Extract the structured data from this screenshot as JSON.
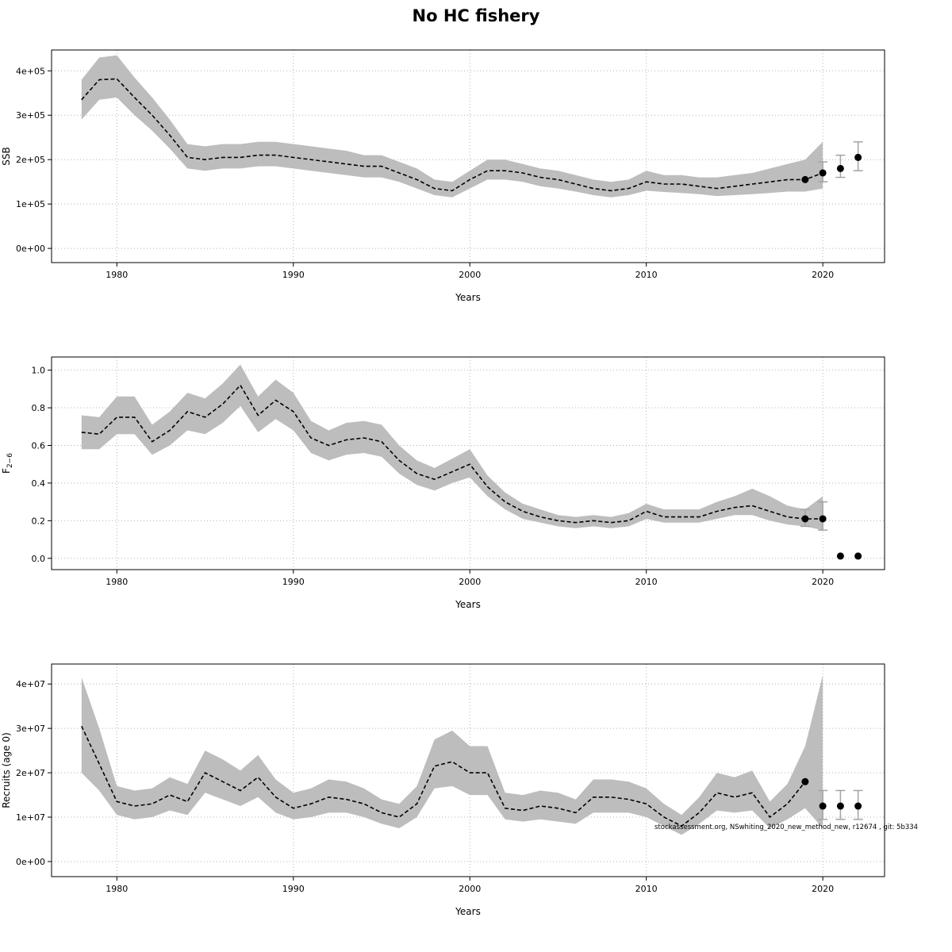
{
  "title": "No HC fishery",
  "watermark": "stockassessment.org, NSwhiting_2020_new_method_new, r12674 , git: 5b334",
  "colors": {
    "band": "#bdbdbd",
    "line": "#000000",
    "point": "#000000",
    "errorbar": "#a3a3a3",
    "grid": "#b4b4b4",
    "border": "#000000",
    "text": "#000000"
  },
  "chart_data": [
    {
      "type": "line",
      "name": "ssb",
      "ylabel_parts": [
        {
          "text": "SSB"
        }
      ],
      "xlabel": "Years",
      "xlim": [
        1976.3,
        2023.5
      ],
      "ylim": [
        -32000,
        447000
      ],
      "xticks": [
        {
          "v": 1980,
          "label": "1980"
        },
        {
          "v": 1990,
          "label": "1990"
        },
        {
          "v": 2000,
          "label": "2000"
        },
        {
          "v": 2010,
          "label": "2010"
        },
        {
          "v": 2020,
          "label": "2020"
        }
      ],
      "yticks": [
        {
          "v": 0,
          "label": "0e+00"
        },
        {
          "v": 100000,
          "label": "1e+05"
        },
        {
          "v": 200000,
          "label": "2e+05"
        },
        {
          "v": 300000,
          "label": "3e+05"
        },
        {
          "v": 400000,
          "label": "4e+05"
        }
      ],
      "band": {
        "years": [
          1978,
          1979,
          1980,
          1981,
          1982,
          1983,
          1984,
          1985,
          1986,
          1987,
          1988,
          1989,
          1990,
          1991,
          1992,
          1993,
          1994,
          1995,
          1996,
          1997,
          1998,
          1999,
          2000,
          2001,
          2002,
          2003,
          2004,
          2005,
          2006,
          2007,
          2008,
          2009,
          2010,
          2011,
          2012,
          2013,
          2014,
          2015,
          2016,
          2017,
          2018,
          2019,
          2020
        ],
        "lo": [
          290000,
          335000,
          340000,
          300000,
          265000,
          225000,
          180000,
          175000,
          180000,
          180000,
          185000,
          185000,
          180000,
          175000,
          170000,
          165000,
          160000,
          160000,
          150000,
          135000,
          120000,
          115000,
          135000,
          155000,
          155000,
          150000,
          140000,
          135000,
          128000,
          120000,
          115000,
          120000,
          130000,
          127000,
          125000,
          122000,
          118000,
          120000,
          122000,
          125000,
          128000,
          128000,
          135000
        ],
        "hi": [
          380000,
          430000,
          435000,
          385000,
          340000,
          290000,
          235000,
          230000,
          235000,
          235000,
          240000,
          240000,
          235000,
          230000,
          225000,
          220000,
          210000,
          210000,
          195000,
          180000,
          155000,
          150000,
          175000,
          200000,
          200000,
          190000,
          180000,
          175000,
          165000,
          155000,
          150000,
          155000,
          175000,
          165000,
          165000,
          160000,
          160000,
          165000,
          170000,
          180000,
          190000,
          200000,
          240000
        ]
      },
      "line": {
        "years": [
          1978,
          1979,
          1980,
          1981,
          1982,
          1983,
          1984,
          1985,
          1986,
          1987,
          1988,
          1989,
          1990,
          1991,
          1992,
          1993,
          1994,
          1995,
          1996,
          1997,
          1998,
          1999,
          2000,
          2001,
          2002,
          2003,
          2004,
          2005,
          2006,
          2007,
          2008,
          2009,
          2010,
          2011,
          2012,
          2013,
          2014,
          2015,
          2016,
          2017,
          2018,
          2019,
          2020
        ],
        "values": [
          335000,
          380000,
          382000,
          340000,
          300000,
          255000,
          205000,
          200000,
          205000,
          205000,
          210000,
          210000,
          205000,
          200000,
          195000,
          190000,
          185000,
          185000,
          170000,
          155000,
          135000,
          130000,
          155000,
          175000,
          175000,
          170000,
          160000,
          155000,
          145000,
          135000,
          130000,
          135000,
          150000,
          145000,
          145000,
          140000,
          135000,
          140000,
          145000,
          150000,
          155000,
          155000,
          170000
        ]
      },
      "points": [
        {
          "year": 2019,
          "value": 155000
        },
        {
          "year": 2020,
          "value": 170000,
          "lo": 150000,
          "hi": 195000
        },
        {
          "year": 2021,
          "value": 180000,
          "lo": 160000,
          "hi": 210000
        },
        {
          "year": 2022,
          "value": 205000,
          "lo": 175000,
          "hi": 240000
        }
      ]
    },
    {
      "type": "line",
      "name": "f2-6",
      "ylabel_parts": [
        {
          "text": "F"
        },
        {
          "text": "2−6",
          "sub": true
        }
      ],
      "xlabel": "Years",
      "xlim": [
        1976.3,
        2023.5
      ],
      "ylim": [
        -0.06,
        1.07
      ],
      "xticks": [
        {
          "v": 1980,
          "label": "1980"
        },
        {
          "v": 1990,
          "label": "1990"
        },
        {
          "v": 2000,
          "label": "2000"
        },
        {
          "v": 2010,
          "label": "2010"
        },
        {
          "v": 2020,
          "label": "2020"
        }
      ],
      "yticks": [
        {
          "v": 0.0,
          "label": "0.0"
        },
        {
          "v": 0.2,
          "label": "0.2"
        },
        {
          "v": 0.4,
          "label": "0.4"
        },
        {
          "v": 0.6,
          "label": "0.6"
        },
        {
          "v": 0.8,
          "label": "0.8"
        },
        {
          "v": 1.0,
          "label": "1.0"
        }
      ],
      "band": {
        "years": [
          1978,
          1979,
          1980,
          1981,
          1982,
          1983,
          1984,
          1985,
          1986,
          1987,
          1988,
          1989,
          1990,
          1991,
          1992,
          1993,
          1994,
          1995,
          1996,
          1997,
          1998,
          1999,
          2000,
          2001,
          2002,
          2003,
          2004,
          2005,
          2006,
          2007,
          2008,
          2009,
          2010,
          2011,
          2012,
          2013,
          2014,
          2015,
          2016,
          2017,
          2018,
          2019,
          2020
        ],
        "lo": [
          0.58,
          0.58,
          0.66,
          0.66,
          0.55,
          0.6,
          0.68,
          0.66,
          0.72,
          0.81,
          0.67,
          0.74,
          0.68,
          0.56,
          0.52,
          0.55,
          0.56,
          0.54,
          0.45,
          0.39,
          0.36,
          0.4,
          0.43,
          0.33,
          0.26,
          0.21,
          0.19,
          0.17,
          0.16,
          0.17,
          0.16,
          0.17,
          0.21,
          0.19,
          0.19,
          0.19,
          0.21,
          0.23,
          0.23,
          0.2,
          0.18,
          0.17,
          0.15
        ],
        "hi": [
          0.76,
          0.75,
          0.86,
          0.86,
          0.71,
          0.78,
          0.88,
          0.85,
          0.93,
          1.03,
          0.86,
          0.95,
          0.88,
          0.73,
          0.68,
          0.72,
          0.73,
          0.71,
          0.6,
          0.52,
          0.48,
          0.53,
          0.58,
          0.44,
          0.35,
          0.29,
          0.26,
          0.23,
          0.22,
          0.23,
          0.22,
          0.24,
          0.29,
          0.26,
          0.26,
          0.26,
          0.3,
          0.33,
          0.37,
          0.33,
          0.28,
          0.26,
          0.33
        ]
      },
      "line": {
        "years": [
          1978,
          1979,
          1980,
          1981,
          1982,
          1983,
          1984,
          1985,
          1986,
          1987,
          1988,
          1989,
          1990,
          1991,
          1992,
          1993,
          1994,
          1995,
          1996,
          1997,
          1998,
          1999,
          2000,
          2001,
          2002,
          2003,
          2004,
          2005,
          2006,
          2007,
          2008,
          2009,
          2010,
          2011,
          2012,
          2013,
          2014,
          2015,
          2016,
          2017,
          2018,
          2019,
          2020
        ],
        "values": [
          0.67,
          0.66,
          0.75,
          0.75,
          0.62,
          0.68,
          0.78,
          0.75,
          0.82,
          0.92,
          0.76,
          0.84,
          0.78,
          0.64,
          0.6,
          0.63,
          0.64,
          0.62,
          0.52,
          0.45,
          0.42,
          0.46,
          0.5,
          0.38,
          0.3,
          0.25,
          0.22,
          0.2,
          0.19,
          0.2,
          0.19,
          0.2,
          0.25,
          0.22,
          0.22,
          0.22,
          0.25,
          0.27,
          0.28,
          0.25,
          0.22,
          0.21,
          0.21
        ]
      },
      "points": [
        {
          "year": 2019,
          "value": 0.21,
          "lo": 0.17,
          "hi": 0.26
        },
        {
          "year": 2020,
          "value": 0.21,
          "lo": 0.15,
          "hi": 0.3
        },
        {
          "year": 2021,
          "value": 0.012
        },
        {
          "year": 2022,
          "value": 0.012
        }
      ]
    },
    {
      "type": "line",
      "name": "recruits",
      "ylabel_parts": [
        {
          "text": "Recruits (age 0)"
        }
      ],
      "xlabel": "Years",
      "xlim": [
        1976.3,
        2023.5
      ],
      "ylim": [
        -3400000,
        44500000
      ],
      "xticks": [
        {
          "v": 1980,
          "label": "1980"
        },
        {
          "v": 1990,
          "label": "1990"
        },
        {
          "v": 2000,
          "label": "2000"
        },
        {
          "v": 2010,
          "label": "2010"
        },
        {
          "v": 2020,
          "label": "2020"
        }
      ],
      "yticks": [
        {
          "v": 0,
          "label": "0e+00"
        },
        {
          "v": 10000000,
          "label": "1e+07"
        },
        {
          "v": 20000000,
          "label": "2e+07"
        },
        {
          "v": 30000000,
          "label": "3e+07"
        },
        {
          "v": 40000000,
          "label": "4e+07"
        }
      ],
      "band": {
        "years": [
          1978,
          1979,
          1980,
          1981,
          1982,
          1983,
          1984,
          1985,
          1986,
          1987,
          1988,
          1989,
          1990,
          1991,
          1992,
          1993,
          1994,
          1995,
          1996,
          1997,
          1998,
          1999,
          2000,
          2001,
          2002,
          2003,
          2004,
          2005,
          2006,
          2007,
          2008,
          2009,
          2010,
          2011,
          2012,
          2013,
          2014,
          2015,
          2016,
          2017,
          2018,
          2019,
          2020
        ],
        "lo": [
          20000000,
          16000000,
          10500000,
          9500000,
          10000000,
          11500000,
          10500000,
          15500000,
          14000000,
          12500000,
          14500000,
          11000000,
          9500000,
          10000000,
          11000000,
          11000000,
          10000000,
          8500000,
          7500000,
          10000000,
          16500000,
          17000000,
          15000000,
          15000000,
          9500000,
          9000000,
          9500000,
          9000000,
          8500000,
          11000000,
          11000000,
          11000000,
          10000000,
          8000000,
          6000000,
          8500000,
          11500000,
          11000000,
          11500000,
          7500000,
          9500000,
          12000000,
          7500000
        ],
        "hi": [
          41500000,
          30000000,
          17000000,
          16000000,
          16500000,
          19000000,
          17500000,
          25000000,
          23000000,
          20500000,
          24000000,
          18500000,
          15500000,
          16500000,
          18500000,
          18000000,
          16500000,
          14000000,
          13000000,
          17000000,
          27500000,
          29500000,
          26000000,
          26000000,
          15500000,
          15000000,
          16000000,
          15500000,
          14000000,
          18500000,
          18500000,
          18000000,
          16500000,
          13000000,
          10500000,
          14500000,
          20000000,
          19000000,
          20500000,
          13500000,
          17500000,
          26000000,
          42000000
        ]
      },
      "line": {
        "years": [
          1978,
          1979,
          1980,
          1981,
          1982,
          1983,
          1984,
          1985,
          1986,
          1987,
          1988,
          1989,
          1990,
          1991,
          1992,
          1993,
          1994,
          1995,
          1996,
          1997,
          1998,
          1999,
          2000,
          2001,
          2002,
          2003,
          2004,
          2005,
          2006,
          2007,
          2008,
          2009,
          2010,
          2011,
          2012,
          2013,
          2014,
          2015,
          2016,
          2017,
          2018,
          2019
        ],
        "values": [
          30500000,
          22000000,
          13500000,
          12500000,
          13000000,
          15000000,
          13500000,
          20000000,
          18000000,
          16000000,
          19000000,
          14500000,
          12000000,
          13000000,
          14500000,
          14000000,
          13000000,
          11000000,
          10000000,
          13000000,
          21500000,
          22500000,
          20000000,
          20000000,
          12000000,
          11500000,
          12500000,
          12000000,
          11000000,
          14500000,
          14500000,
          14000000,
          13000000,
          10000000,
          8000000,
          11000000,
          15500000,
          14500000,
          15500000,
          10000000,
          13000000,
          18000000
        ]
      },
      "points": [
        {
          "year": 2019,
          "value": 18000000
        },
        {
          "year": 2020,
          "value": 12500000,
          "lo": 9500000,
          "hi": 16000000
        },
        {
          "year": 2021,
          "value": 12500000,
          "lo": 9500000,
          "hi": 16000000
        },
        {
          "year": 2022,
          "value": 12500000,
          "lo": 9500000,
          "hi": 16000000
        }
      ]
    }
  ]
}
